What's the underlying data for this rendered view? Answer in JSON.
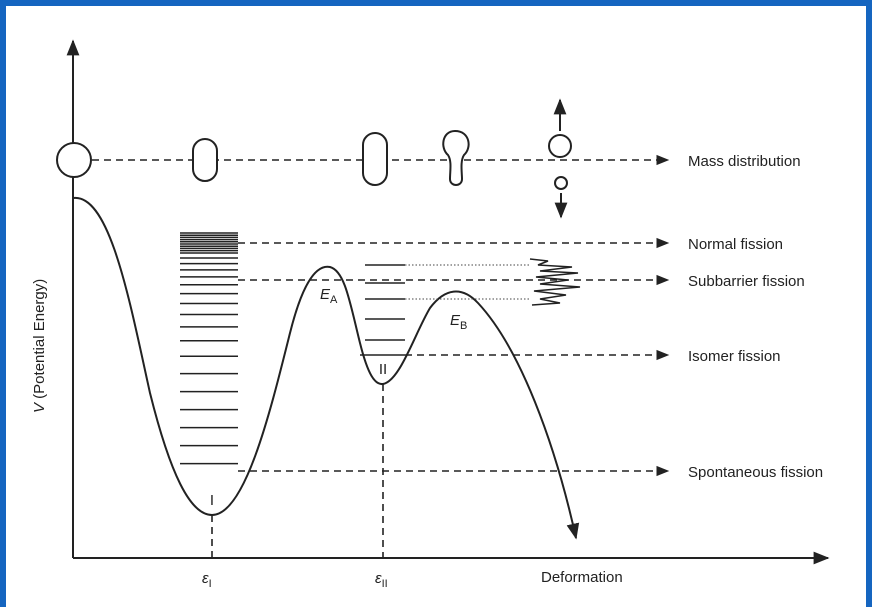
{
  "y_axis_label": {
    "symbol": "V",
    "text": "(Potential Energy)"
  },
  "x_axis_label": "Deformation",
  "x_ticks": [
    {
      "symbol": "ε",
      "subscript": "I"
    },
    {
      "symbol": "ε",
      "subscript": "II"
    }
  ],
  "barriers": [
    {
      "symbol": "E",
      "subscript": "A"
    },
    {
      "symbol": "E",
      "subscript": "B"
    }
  ],
  "wells": [
    "I",
    "II"
  ],
  "processes": [
    "Mass distribution",
    "Normal fission",
    "Subbarrier fission",
    "Isomer fission",
    "Spontaneous fission"
  ]
}
